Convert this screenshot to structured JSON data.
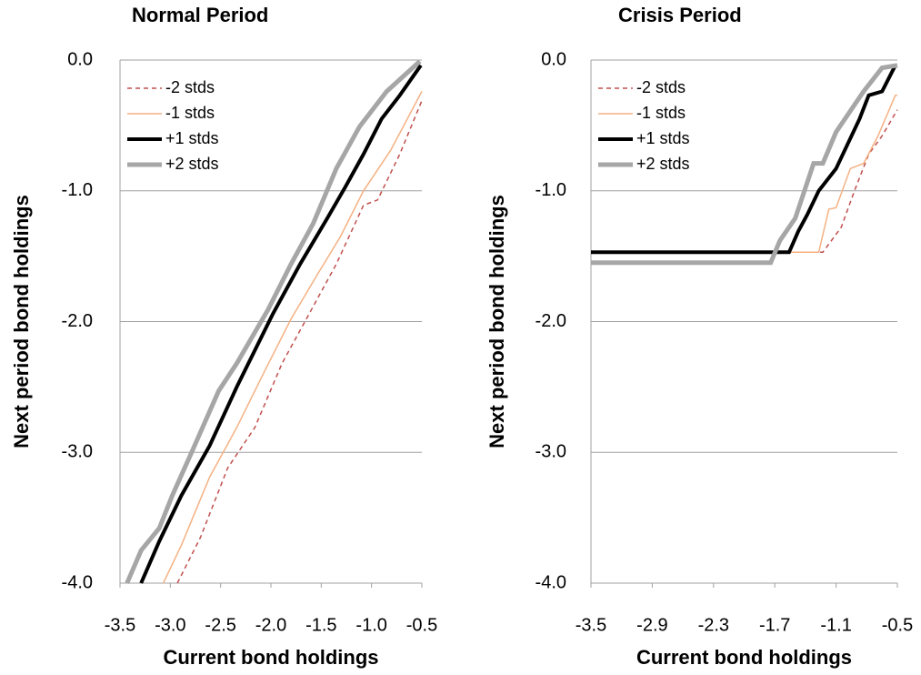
{
  "chart_data": [
    {
      "type": "line",
      "title": "Normal Period",
      "xlabel": "Current bond holdings",
      "ylabel": "Next period bond holdings",
      "xlim": [
        -3.5,
        -0.5
      ],
      "ylim": [
        -4,
        0
      ],
      "xticks": [
        -3.5,
        {
          "value": -3,
          "label": "-3.0"
        },
        -2.5,
        {
          "value": -2,
          "label": "-2.0"
        },
        -1.5,
        {
          "value": -1,
          "label": "-1.0"
        },
        -0.5
      ],
      "yticks": [
        {
          "value": 0,
          "label": "0.0"
        },
        {
          "value": -1,
          "label": "-1.0"
        },
        {
          "value": -2,
          "label": "-2.0"
        },
        {
          "value": -3,
          "label": "-3.0"
        },
        {
          "value": -4,
          "label": "-4.0"
        }
      ],
      "grid": true,
      "legend": "upper left",
      "series": [
        {
          "name": "-2 stds",
          "color": "#c0504d",
          "dashed": true,
          "x": [
            -2.93,
            -2.7,
            -2.43,
            -2.16,
            -1.89,
            -1.62,
            -1.35,
            -1.08,
            -0.94,
            -0.72,
            -0.5
          ],
          "values": [
            -4.0,
            -3.65,
            -3.12,
            -2.81,
            -2.32,
            -1.94,
            -1.56,
            -1.11,
            -1.07,
            -0.72,
            -0.31
          ]
        },
        {
          "name": "-1 stds",
          "color": "#f4b183",
          "dashed": false,
          "x": [
            -3.07,
            -2.89,
            -2.61,
            -2.34,
            -2.07,
            -1.8,
            -1.53,
            -1.31,
            -1.08,
            -0.81,
            -0.5
          ],
          "values": [
            -4.0,
            -3.71,
            -3.19,
            -2.81,
            -2.39,
            -1.98,
            -1.63,
            -1.35,
            -1.0,
            -0.69,
            -0.24
          ]
        },
        {
          "name": "+1 stds",
          "color": "#000000",
          "dashed": false,
          "x": [
            -3.29,
            -3.11,
            -2.89,
            -2.61,
            -2.34,
            -1.98,
            -1.71,
            -1.44,
            -1.26,
            -1.08,
            -0.9,
            -0.72,
            -0.51
          ],
          "values": [
            -4.0,
            -3.68,
            -3.33,
            -2.95,
            -2.5,
            -1.94,
            -1.56,
            -1.21,
            -0.97,
            -0.72,
            -0.45,
            -0.27,
            -0.04
          ]
        },
        {
          "name": "+2 stds",
          "color": "#a6a6a6",
          "dashed": false,
          "x": [
            -3.43,
            -3.29,
            -3.11,
            -2.98,
            -2.8,
            -2.52,
            -2.34,
            -2.03,
            -1.8,
            -1.58,
            -1.35,
            -1.12,
            -0.85,
            -0.52
          ],
          "values": [
            -4.0,
            -3.75,
            -3.58,
            -3.33,
            -3.02,
            -2.53,
            -2.32,
            -1.91,
            -1.56,
            -1.25,
            -0.83,
            -0.51,
            -0.24,
            -0.01
          ]
        }
      ]
    },
    {
      "type": "line",
      "title": "Crisis Period",
      "xlabel": "Current bond holdings",
      "ylabel": "Next period bond holdings",
      "xlim": [
        -3.5,
        -0.5
      ],
      "ylim": [
        -4,
        0
      ],
      "xticks": [
        -3.5,
        -2.9,
        -2.3,
        -1.7,
        -1.1,
        -0.5
      ],
      "yticks": [
        {
          "value": 0,
          "label": "0.0"
        },
        {
          "value": -1,
          "label": "-1.0"
        },
        {
          "value": -2,
          "label": "-2.0"
        },
        {
          "value": -3,
          "label": "-3.0"
        },
        {
          "value": -4,
          "label": "-4.0"
        }
      ],
      "grid": true,
      "legend": "upper left",
      "series": [
        {
          "name": "-2 stds",
          "color": "#c0504d",
          "dashed": true,
          "x": [
            -3.5,
            -1.23,
            -1.05,
            -0.92,
            -0.78,
            -0.65,
            -0.5
          ],
          "values": [
            -1.47,
            -1.47,
            -1.28,
            -1.0,
            -0.72,
            -0.58,
            -0.38
          ]
        },
        {
          "name": "-1 stds",
          "color": "#f4b183",
          "dashed": false,
          "x": [
            -3.5,
            -1.27,
            -1.17,
            -1.1,
            -0.96,
            -0.83,
            -0.69,
            -0.52,
            -0.5
          ],
          "values": [
            -1.47,
            -1.47,
            -1.14,
            -1.13,
            -0.83,
            -0.79,
            -0.58,
            -0.27,
            -0.27
          ]
        },
        {
          "name": "+1 stds",
          "color": "#000000",
          "dashed": false,
          "x": [
            -3.5,
            -1.56,
            -1.47,
            -1.38,
            -1.27,
            -1.1,
            -0.87,
            -0.78,
            -0.65,
            -0.52
          ],
          "values": [
            -1.47,
            -1.47,
            -1.31,
            -1.18,
            -1.0,
            -0.83,
            -0.45,
            -0.27,
            -0.24,
            -0.04
          ]
        },
        {
          "name": "+2 stds",
          "color": "#a6a6a6",
          "dashed": false,
          "x": [
            -3.5,
            -1.74,
            -1.65,
            -1.5,
            -1.32,
            -1.23,
            -1.1,
            -0.83,
            -0.65,
            -0.5
          ],
          "values": [
            -1.55,
            -1.55,
            -1.38,
            -1.21,
            -0.79,
            -0.79,
            -0.55,
            -0.24,
            -0.06,
            -0.04
          ]
        }
      ]
    }
  ]
}
